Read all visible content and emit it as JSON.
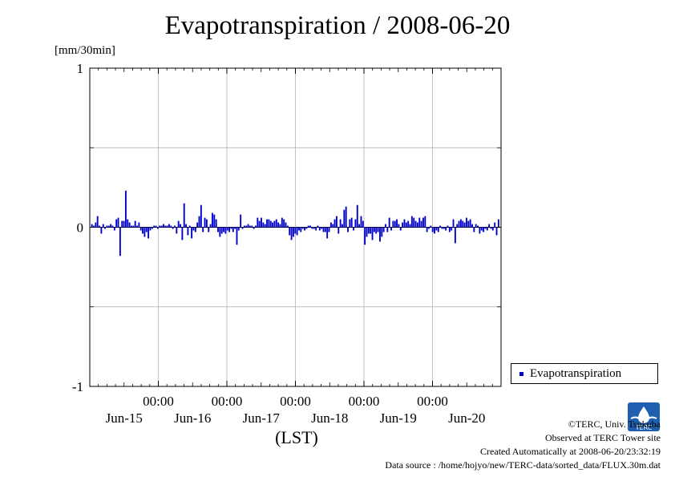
{
  "title": "Evapotranspiration / 2008-06-20",
  "unit": "[mm/30min]",
  "xlabel": "(LST)",
  "legend": {
    "label": "Evapotranspiration",
    "color": "#0000cc"
  },
  "credits": {
    "copyright": "©TERC, Univ. Tsukuba",
    "site": "Observed at TERC Tower site",
    "created": "Created Automatically at 2008-06-20/23:32:19",
    "source": "Data source : /home/hojyo/new/TERC-data/sorted_data/FLUX.30m.dat"
  },
  "logo_text": "TERC",
  "chart_data": {
    "type": "bar",
    "ylabel": "[mm/30min]",
    "xlabel": "(LST)",
    "ylim": [
      -1,
      1
    ],
    "yticks": [
      -1,
      0,
      1
    ],
    "ygrid": [
      -0.5,
      0.5
    ],
    "xlim_days": [
      0,
      6
    ],
    "time_ticks": [
      "00:00",
      "00:00",
      "00:00",
      "00:00",
      "00:00"
    ],
    "day_labels": [
      "Jun-15",
      "Jun-16",
      "Jun-17",
      "Jun-18",
      "Jun-19",
      "Jun-20"
    ],
    "grid": true,
    "legend_position": "right",
    "series": [
      {
        "name": "Evapotranspiration",
        "color": "#0000cc",
        "values": [
          0.02,
          0.01,
          0.03,
          0.07,
          0.01,
          -0.04,
          0.02,
          -0.01,
          0.01,
          0.01,
          0.02,
          0.01,
          -0.02,
          0.05,
          0.06,
          -0.18,
          0.04,
          0.04,
          0.23,
          0.05,
          0.03,
          0.01,
          0.01,
          0.04,
          0.01,
          0.03,
          -0.02,
          -0.04,
          -0.06,
          -0.03,
          -0.07,
          -0.02,
          -0.01,
          0.01,
          0.01,
          -0.01,
          0.01,
          0.01,
          0.02,
          0.01,
          0.01,
          0.02,
          0.01,
          -0.01,
          0.01,
          -0.04,
          0.04,
          0.02,
          -0.08,
          0.15,
          0.02,
          -0.05,
          0.01,
          -0.07,
          -0.02,
          -0.03,
          0.03,
          0.07,
          0.14,
          -0.03,
          0.06,
          0.05,
          -0.03,
          0.02,
          0.09,
          0.08,
          0.05,
          -0.03,
          -0.06,
          -0.04,
          -0.03,
          -0.04,
          -0.02,
          -0.03,
          -0.01,
          -0.03,
          -0.01,
          -0.11,
          -0.02,
          0.08,
          -0.01,
          0.01,
          0.01,
          0.02,
          0.01,
          0.01,
          -0.01,
          0.01,
          0.06,
          0.04,
          0.06,
          0.03,
          0.02,
          0.05,
          0.05,
          0.04,
          0.03,
          0.04,
          0.05,
          0.03,
          0.02,
          0.06,
          0.05,
          0.03,
          0.01,
          -0.05,
          -0.08,
          -0.06,
          -0.04,
          -0.05,
          -0.02,
          -0.03,
          -0.01,
          -0.02,
          -0.01,
          0.01,
          0.01,
          -0.01,
          -0.01,
          -0.02,
          0.01,
          -0.02,
          -0.01,
          -0.03,
          -0.03,
          -0.07,
          -0.03,
          0.03,
          0.02,
          0.05,
          0.07,
          -0.04,
          0.05,
          0.02,
          0.11,
          0.13,
          -0.03,
          0.05,
          0.06,
          -0.02,
          0.05,
          0.14,
          0.02,
          0.07,
          0.04,
          -0.11,
          -0.06,
          -0.04,
          -0.04,
          -0.08,
          -0.03,
          -0.04,
          -0.03,
          -0.09,
          -0.06,
          -0.03,
          0.02,
          -0.03,
          0.06,
          -0.02,
          0.04,
          0.04,
          0.05,
          0.02,
          -0.02,
          0.03,
          0.05,
          0.03,
          0.04,
          0.02,
          0.07,
          0.06,
          0.04,
          0.03,
          0.06,
          0.04,
          0.06,
          0.07,
          -0.03,
          -0.01,
          0.01,
          -0.03,
          -0.04,
          -0.02,
          -0.03,
          0.01,
          -0.01,
          -0.01,
          -0.02,
          0.01,
          -0.03,
          -0.02,
          0.05,
          -0.1,
          0.02,
          0.04,
          0.05,
          0.04,
          0.03,
          0.06,
          0.04,
          0.05,
          0.02,
          -0.03,
          0.02,
          0.01,
          -0.04,
          -0.02,
          -0.03,
          -0.01,
          -0.02,
          0.02,
          -0.01,
          -0.02,
          0.03,
          -0.05,
          0.05
        ]
      }
    ]
  }
}
